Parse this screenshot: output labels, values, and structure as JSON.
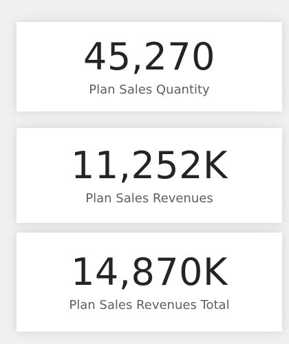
{
  "cards": [
    {
      "value": "45,270",
      "label": "Plan Sales Quantity"
    },
    {
      "value": "11,252K",
      "label": "Plan Sales Revenues"
    },
    {
      "value": "14,870K",
      "label": "Plan Sales Revenues Total"
    }
  ]
}
